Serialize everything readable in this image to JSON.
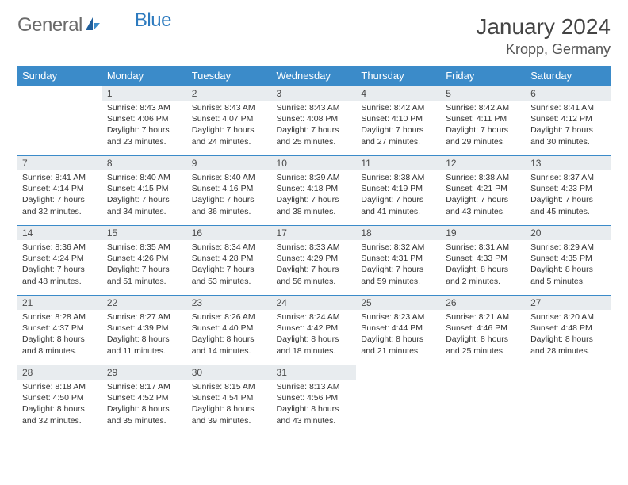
{
  "brand": {
    "part1": "General",
    "part2": "Blue"
  },
  "title": "January 2024",
  "location": "Kropp, Germany",
  "columns": [
    "Sunday",
    "Monday",
    "Tuesday",
    "Wednesday",
    "Thursday",
    "Friday",
    "Saturday"
  ],
  "colors": {
    "header_bg": "#3b8bc9",
    "header_text": "#ffffff",
    "daynum_bg": "#e8ecef",
    "border": "#3b8bc9",
    "logo_gray": "#6a6a6a",
    "logo_blue": "#2e7bbf"
  },
  "weeks": [
    [
      {
        "n": "",
        "sr": "",
        "ss": "",
        "d1": "",
        "d2": ""
      },
      {
        "n": "1",
        "sr": "Sunrise: 8:43 AM",
        "ss": "Sunset: 4:06 PM",
        "d1": "Daylight: 7 hours",
        "d2": "and 23 minutes."
      },
      {
        "n": "2",
        "sr": "Sunrise: 8:43 AM",
        "ss": "Sunset: 4:07 PM",
        "d1": "Daylight: 7 hours",
        "d2": "and 24 minutes."
      },
      {
        "n": "3",
        "sr": "Sunrise: 8:43 AM",
        "ss": "Sunset: 4:08 PM",
        "d1": "Daylight: 7 hours",
        "d2": "and 25 minutes."
      },
      {
        "n": "4",
        "sr": "Sunrise: 8:42 AM",
        "ss": "Sunset: 4:10 PM",
        "d1": "Daylight: 7 hours",
        "d2": "and 27 minutes."
      },
      {
        "n": "5",
        "sr": "Sunrise: 8:42 AM",
        "ss": "Sunset: 4:11 PM",
        "d1": "Daylight: 7 hours",
        "d2": "and 29 minutes."
      },
      {
        "n": "6",
        "sr": "Sunrise: 8:41 AM",
        "ss": "Sunset: 4:12 PM",
        "d1": "Daylight: 7 hours",
        "d2": "and 30 minutes."
      }
    ],
    [
      {
        "n": "7",
        "sr": "Sunrise: 8:41 AM",
        "ss": "Sunset: 4:14 PM",
        "d1": "Daylight: 7 hours",
        "d2": "and 32 minutes."
      },
      {
        "n": "8",
        "sr": "Sunrise: 8:40 AM",
        "ss": "Sunset: 4:15 PM",
        "d1": "Daylight: 7 hours",
        "d2": "and 34 minutes."
      },
      {
        "n": "9",
        "sr": "Sunrise: 8:40 AM",
        "ss": "Sunset: 4:16 PM",
        "d1": "Daylight: 7 hours",
        "d2": "and 36 minutes."
      },
      {
        "n": "10",
        "sr": "Sunrise: 8:39 AM",
        "ss": "Sunset: 4:18 PM",
        "d1": "Daylight: 7 hours",
        "d2": "and 38 minutes."
      },
      {
        "n": "11",
        "sr": "Sunrise: 8:38 AM",
        "ss": "Sunset: 4:19 PM",
        "d1": "Daylight: 7 hours",
        "d2": "and 41 minutes."
      },
      {
        "n": "12",
        "sr": "Sunrise: 8:38 AM",
        "ss": "Sunset: 4:21 PM",
        "d1": "Daylight: 7 hours",
        "d2": "and 43 minutes."
      },
      {
        "n": "13",
        "sr": "Sunrise: 8:37 AM",
        "ss": "Sunset: 4:23 PM",
        "d1": "Daylight: 7 hours",
        "d2": "and 45 minutes."
      }
    ],
    [
      {
        "n": "14",
        "sr": "Sunrise: 8:36 AM",
        "ss": "Sunset: 4:24 PM",
        "d1": "Daylight: 7 hours",
        "d2": "and 48 minutes."
      },
      {
        "n": "15",
        "sr": "Sunrise: 8:35 AM",
        "ss": "Sunset: 4:26 PM",
        "d1": "Daylight: 7 hours",
        "d2": "and 51 minutes."
      },
      {
        "n": "16",
        "sr": "Sunrise: 8:34 AM",
        "ss": "Sunset: 4:28 PM",
        "d1": "Daylight: 7 hours",
        "d2": "and 53 minutes."
      },
      {
        "n": "17",
        "sr": "Sunrise: 8:33 AM",
        "ss": "Sunset: 4:29 PM",
        "d1": "Daylight: 7 hours",
        "d2": "and 56 minutes."
      },
      {
        "n": "18",
        "sr": "Sunrise: 8:32 AM",
        "ss": "Sunset: 4:31 PM",
        "d1": "Daylight: 7 hours",
        "d2": "and 59 minutes."
      },
      {
        "n": "19",
        "sr": "Sunrise: 8:31 AM",
        "ss": "Sunset: 4:33 PM",
        "d1": "Daylight: 8 hours",
        "d2": "and 2 minutes."
      },
      {
        "n": "20",
        "sr": "Sunrise: 8:29 AM",
        "ss": "Sunset: 4:35 PM",
        "d1": "Daylight: 8 hours",
        "d2": "and 5 minutes."
      }
    ],
    [
      {
        "n": "21",
        "sr": "Sunrise: 8:28 AM",
        "ss": "Sunset: 4:37 PM",
        "d1": "Daylight: 8 hours",
        "d2": "and 8 minutes."
      },
      {
        "n": "22",
        "sr": "Sunrise: 8:27 AM",
        "ss": "Sunset: 4:39 PM",
        "d1": "Daylight: 8 hours",
        "d2": "and 11 minutes."
      },
      {
        "n": "23",
        "sr": "Sunrise: 8:26 AM",
        "ss": "Sunset: 4:40 PM",
        "d1": "Daylight: 8 hours",
        "d2": "and 14 minutes."
      },
      {
        "n": "24",
        "sr": "Sunrise: 8:24 AM",
        "ss": "Sunset: 4:42 PM",
        "d1": "Daylight: 8 hours",
        "d2": "and 18 minutes."
      },
      {
        "n": "25",
        "sr": "Sunrise: 8:23 AM",
        "ss": "Sunset: 4:44 PM",
        "d1": "Daylight: 8 hours",
        "d2": "and 21 minutes."
      },
      {
        "n": "26",
        "sr": "Sunrise: 8:21 AM",
        "ss": "Sunset: 4:46 PM",
        "d1": "Daylight: 8 hours",
        "d2": "and 25 minutes."
      },
      {
        "n": "27",
        "sr": "Sunrise: 8:20 AM",
        "ss": "Sunset: 4:48 PM",
        "d1": "Daylight: 8 hours",
        "d2": "and 28 minutes."
      }
    ],
    [
      {
        "n": "28",
        "sr": "Sunrise: 8:18 AM",
        "ss": "Sunset: 4:50 PM",
        "d1": "Daylight: 8 hours",
        "d2": "and 32 minutes."
      },
      {
        "n": "29",
        "sr": "Sunrise: 8:17 AM",
        "ss": "Sunset: 4:52 PM",
        "d1": "Daylight: 8 hours",
        "d2": "and 35 minutes."
      },
      {
        "n": "30",
        "sr": "Sunrise: 8:15 AM",
        "ss": "Sunset: 4:54 PM",
        "d1": "Daylight: 8 hours",
        "d2": "and 39 minutes."
      },
      {
        "n": "31",
        "sr": "Sunrise: 8:13 AM",
        "ss": "Sunset: 4:56 PM",
        "d1": "Daylight: 8 hours",
        "d2": "and 43 minutes."
      },
      {
        "n": "",
        "sr": "",
        "ss": "",
        "d1": "",
        "d2": ""
      },
      {
        "n": "",
        "sr": "",
        "ss": "",
        "d1": "",
        "d2": ""
      },
      {
        "n": "",
        "sr": "",
        "ss": "",
        "d1": "",
        "d2": ""
      }
    ]
  ]
}
